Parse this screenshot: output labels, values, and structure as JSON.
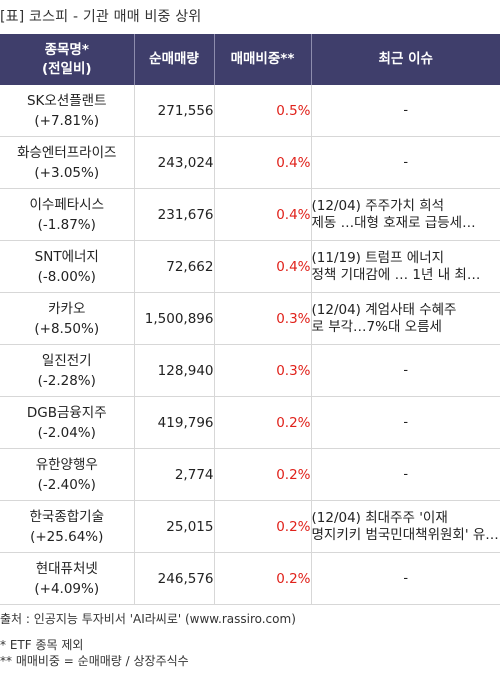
{
  "title": "[표] 코스피 - 기관 매매 비중 상위",
  "headers": {
    "name_line1": "종목명*",
    "name_line2": "(전일비)",
    "volume": "순매매량",
    "ratio": "매매비중**",
    "issue": "최근 이슈"
  },
  "rows": [
    {
      "name": "SK오션플랜트",
      "change": "(+7.81%)",
      "volume": "271,556",
      "ratio": "0.5%",
      "issue1": "-",
      "issue2": ""
    },
    {
      "name": "화승엔터프라이즈",
      "change": "(+3.05%)",
      "volume": "243,024",
      "ratio": "0.4%",
      "issue1": "-",
      "issue2": ""
    },
    {
      "name": "이수페타시스",
      "change": "(-1.87%)",
      "volume": "231,676",
      "ratio": "0.4%",
      "issue1": "(12/04) 주주가치 희석",
      "issue2": "제동 …대형 호재로 급등세…"
    },
    {
      "name": "SNT에너지",
      "change": "(-8.00%)",
      "volume": "72,662",
      "ratio": "0.4%",
      "issue1": "(11/19) 트럼프 에너지",
      "issue2": "정책 기대감에 … 1년 내 최…"
    },
    {
      "name": "카카오",
      "change": "(+8.50%)",
      "volume": "1,500,896",
      "ratio": "0.3%",
      "issue1": "(12/04) 계엄사태 수혜주",
      "issue2": "로 부각…7%대 오름세"
    },
    {
      "name": "일진전기",
      "change": "(-2.28%)",
      "volume": "128,940",
      "ratio": "0.3%",
      "issue1": "-",
      "issue2": ""
    },
    {
      "name": "DGB금융지주",
      "change": "(-2.04%)",
      "volume": "419,796",
      "ratio": "0.2%",
      "issue1": "-",
      "issue2": ""
    },
    {
      "name": "유한양행우",
      "change": "(-2.40%)",
      "volume": "2,774",
      "ratio": "0.2%",
      "issue1": "-",
      "issue2": ""
    },
    {
      "name": "한국종합기술",
      "change": "(+25.64%)",
      "volume": "25,015",
      "ratio": "0.2%",
      "issue1": "(12/04) 최대주주 '이재",
      "issue2": "명지키키 범국민대책위원회' 유…"
    },
    {
      "name": "현대퓨처넷",
      "change": "(+4.09%)",
      "volume": "246,576",
      "ratio": "0.2%",
      "issue1": "-",
      "issue2": ""
    }
  ],
  "footer": {
    "source": "출처 : 인공지능 투자비서 'AI라씨로' (www.rassiro.com)",
    "note1": "* ETF 종목 제외",
    "note2": "** 매매비중 = 순매매량 / 상장주식수"
  }
}
